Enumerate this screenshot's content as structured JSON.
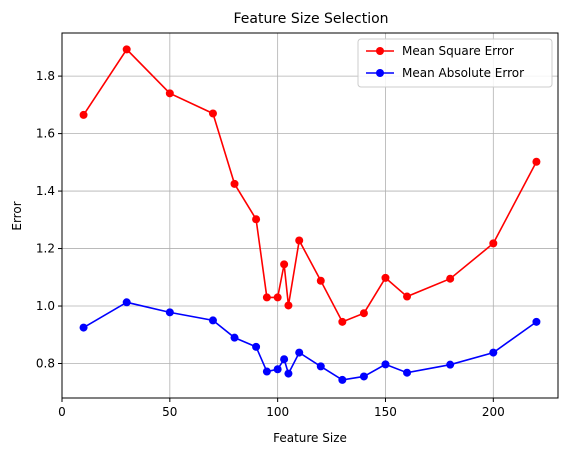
{
  "chart_data": {
    "type": "line",
    "title": "Feature Size Selection",
    "xlabel": "Feature Size",
    "ylabel": "Error",
    "xlim": [
      0,
      230
    ],
    "ylim": [
      0.68,
      1.95
    ],
    "xticks": [
      0,
      50,
      100,
      150,
      200
    ],
    "yticks": [
      0.8,
      1.0,
      1.2,
      1.4,
      1.6,
      1.8
    ],
    "ytick_labels": [
      "0.8",
      "1.0",
      "1.2",
      "1.4",
      "1.6",
      "1.8"
    ],
    "grid": true,
    "legend_position": "top-right",
    "x": [
      10,
      30,
      50,
      70,
      80,
      90,
      95,
      100,
      103,
      105,
      110,
      120,
      130,
      140,
      150,
      160,
      180,
      200,
      220
    ],
    "series": [
      {
        "name": "Mean Square Error",
        "color": "#ff0000",
        "values": [
          1.665,
          1.893,
          1.74,
          1.67,
          1.425,
          1.302,
          1.03,
          1.03,
          1.145,
          1.002,
          1.228,
          1.088,
          0.945,
          0.975,
          1.098,
          1.033,
          1.095,
          1.218,
          1.502
        ]
      },
      {
        "name": "Mean Absolute Error",
        "color": "#0000ff",
        "values": [
          0.925,
          1.013,
          0.978,
          0.95,
          0.89,
          0.858,
          0.772,
          0.78,
          0.815,
          0.765,
          0.838,
          0.79,
          0.743,
          0.755,
          0.797,
          0.768,
          0.796,
          0.838,
          0.945
        ]
      }
    ]
  }
}
